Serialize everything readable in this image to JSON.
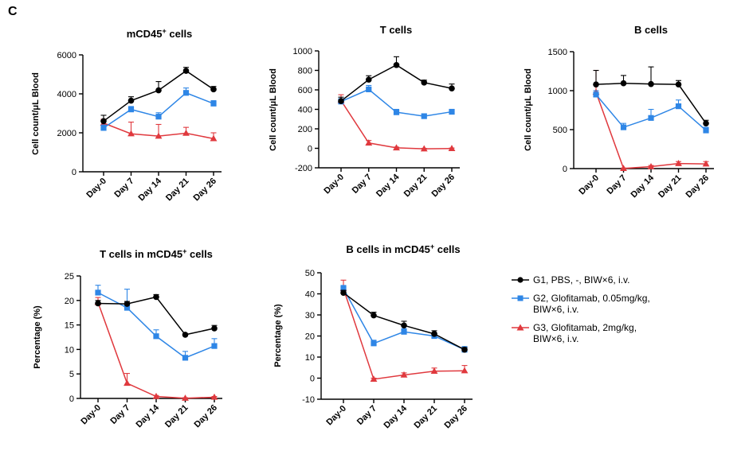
{
  "panel_label": "C",
  "colors": {
    "G1": "#000000",
    "G2": "#2e86e6",
    "G3": "#e0393e"
  },
  "legend": [
    {
      "key": "G1",
      "marker": "circle",
      "line1": "G1, PBS, -, BIW×6, i.v.",
      "line2": ""
    },
    {
      "key": "G2",
      "marker": "square",
      "line1": "G2, Glofitamab, 0.05mg/kg,",
      "line2": "BIW×6, i.v."
    },
    {
      "key": "G3",
      "marker": "triangle",
      "line1": "G3, Glofitamab, 2mg/kg,",
      "line2": "BIW×6, i.v."
    }
  ],
  "chart_data": [
    {
      "type": "line",
      "title": "mCD45",
      "title_sup": "+",
      "title_suffix": " cells",
      "xlabel": "",
      "ylabel": "Cell count/μL Blood",
      "categories": [
        "Day-0",
        "Day 7",
        "Day 14",
        "Day 21",
        "Day 26"
      ],
      "ylim": [
        0,
        6000
      ],
      "yticks": [
        0,
        2000,
        4000,
        6000
      ],
      "series": [
        {
          "name": "G1, PBS, -, BIW×6, i.v.",
          "key": "G1",
          "values": [
            2600,
            3650,
            4180,
            5180,
            4230
          ],
          "err": [
            300,
            200,
            450,
            180,
            150
          ]
        },
        {
          "name": "G2, Glofitamab, 0.05mg/kg, BIW×6, i.v.",
          "key": "G2",
          "values": [
            2250,
            3200,
            2830,
            4050,
            3500
          ],
          "err": [
            150,
            150,
            200,
            250,
            150
          ]
        },
        {
          "name": "G3, Glofitamab, 2mg/kg, BIW×6, i.v.",
          "key": "G3",
          "values": [
            2500,
            1950,
            1830,
            1980,
            1700
          ],
          "err": [
            200,
            600,
            600,
            300,
            300
          ]
        }
      ]
    },
    {
      "type": "line",
      "title": "T cells",
      "title_sup": "",
      "title_suffix": "",
      "xlabel": "",
      "ylabel": "Cell count/μL Blood",
      "categories": [
        "Day-0",
        "Day 7",
        "Day 14",
        "Day 21",
        "Day 26"
      ],
      "ylim": [
        -200,
        1000
      ],
      "yticks": [
        -200,
        0,
        200,
        400,
        600,
        800,
        1000
      ],
      "series": [
        {
          "name": "G1, PBS, -, BIW×6, i.v.",
          "key": "G1",
          "values": [
            485,
            705,
            855,
            675,
            615
          ],
          "err": [
            40,
            40,
            85,
            25,
            45
          ]
        },
        {
          "name": "G2, Glofitamab, 0.05mg/kg, BIW×6, i.v.",
          "key": "G2",
          "values": [
            480,
            605,
            370,
            330,
            375
          ],
          "err": [
            30,
            40,
            30,
            15,
            25
          ]
        },
        {
          "name": "G3, Glofitamab, 2mg/kg, BIW×6, i.v.",
          "key": "G3",
          "values": [
            490,
            55,
            5,
            -5,
            -2
          ],
          "err": [
            60,
            25,
            8,
            5,
            5
          ]
        }
      ]
    },
    {
      "type": "line",
      "title": "B cells",
      "title_sup": "",
      "title_suffix": "",
      "xlabel": "",
      "ylabel": "Cell count/μL Blood",
      "categories": [
        "Day-0",
        "Day 7",
        "Day 14",
        "Day 21",
        "Day 26"
      ],
      "ylim": [
        0,
        1500
      ],
      "yticks": [
        0,
        500,
        1000,
        1500
      ],
      "series": [
        {
          "name": "G1, PBS, -, BIW×6, i.v.",
          "key": "G1",
          "values": [
            1080,
            1095,
            1085,
            1080,
            580
          ],
          "err": [
            180,
            100,
            220,
            50,
            40
          ]
        },
        {
          "name": "G2, Glofitamab, 0.05mg/kg, BIW×6, i.v.",
          "key": "G2",
          "values": [
            950,
            530,
            650,
            800,
            490
          ],
          "err": [
            50,
            50,
            110,
            80,
            40
          ]
        },
        {
          "name": "G3, Glofitamab, 2mg/kg, BIW×6, i.v.",
          "key": "G3",
          "values": [
            980,
            2,
            25,
            65,
            60
          ],
          "err": [
            280,
            5,
            15,
            25,
            30
          ]
        }
      ]
    },
    {
      "type": "line",
      "title": "T cells in mCD45",
      "title_sup": "+",
      "title_suffix": " cells",
      "xlabel": "",
      "ylabel": "Percentage (%)",
      "categories": [
        "Day-0",
        "Day 7",
        "Day 14",
        "Day 21",
        "Day 26"
      ],
      "ylim": [
        0,
        25
      ],
      "yticks": [
        0,
        5,
        10,
        15,
        20,
        25
      ],
      "series": [
        {
          "name": "G1, PBS, -, BIW×6, i.v.",
          "key": "G1",
          "values": [
            19.4,
            19.3,
            20.7,
            13.0,
            14.3
          ],
          "err": [
            0.6,
            0.5,
            0.5,
            0.2,
            0.6
          ]
        },
        {
          "name": "G2, Glofitamab, 0.05mg/kg, BIW×6, i.v.",
          "key": "G2",
          "values": [
            21.6,
            18.5,
            12.7,
            8.3,
            10.7
          ],
          "err": [
            1.5,
            3.8,
            1.3,
            1.3,
            1.5
          ]
        },
        {
          "name": "G3, Glofitamab, 2mg/kg, BIW×6, i.v.",
          "key": "G3",
          "values": [
            19.6,
            3.1,
            0.4,
            0.05,
            0.25
          ],
          "err": [
            1.0,
            2.0,
            0.2,
            0.1,
            0.15
          ]
        }
      ]
    },
    {
      "type": "line",
      "title": "B cells in mCD45",
      "title_sup": "+",
      "title_suffix": " cells",
      "xlabel": "",
      "ylabel": "Percentage (%)",
      "categories": [
        "Day-0",
        "Day 7",
        "Day 14",
        "Day 21",
        "Day 26"
      ],
      "ylim": [
        -10,
        50
      ],
      "yticks": [
        -10,
        0,
        10,
        20,
        30,
        40,
        50
      ],
      "series": [
        {
          "name": "G1, PBS, -, BIW×6, i.v.",
          "key": "G1",
          "values": [
            40.5,
            29.8,
            25.0,
            21.0,
            13.5
          ],
          "err": [
            1.2,
            1.5,
            2.0,
            1.5,
            1.0
          ]
        },
        {
          "name": "G2, Glofitamab, 0.05mg/kg, BIW×6, i.v.",
          "key": "G2",
          "values": [
            42.5,
            16.5,
            22.0,
            20.0,
            13.5
          ],
          "err": [
            1.5,
            1.5,
            1.5,
            1.5,
            1.5
          ]
        },
        {
          "name": "G3, Glofitamab, 2mg/kg, BIW×6, i.v.",
          "key": "G3",
          "values": [
            42.5,
            -0.5,
            1.5,
            3.3,
            3.5
          ],
          "err": [
            4.0,
            0.5,
            1.0,
            1.5,
            2.5
          ]
        }
      ]
    }
  ]
}
